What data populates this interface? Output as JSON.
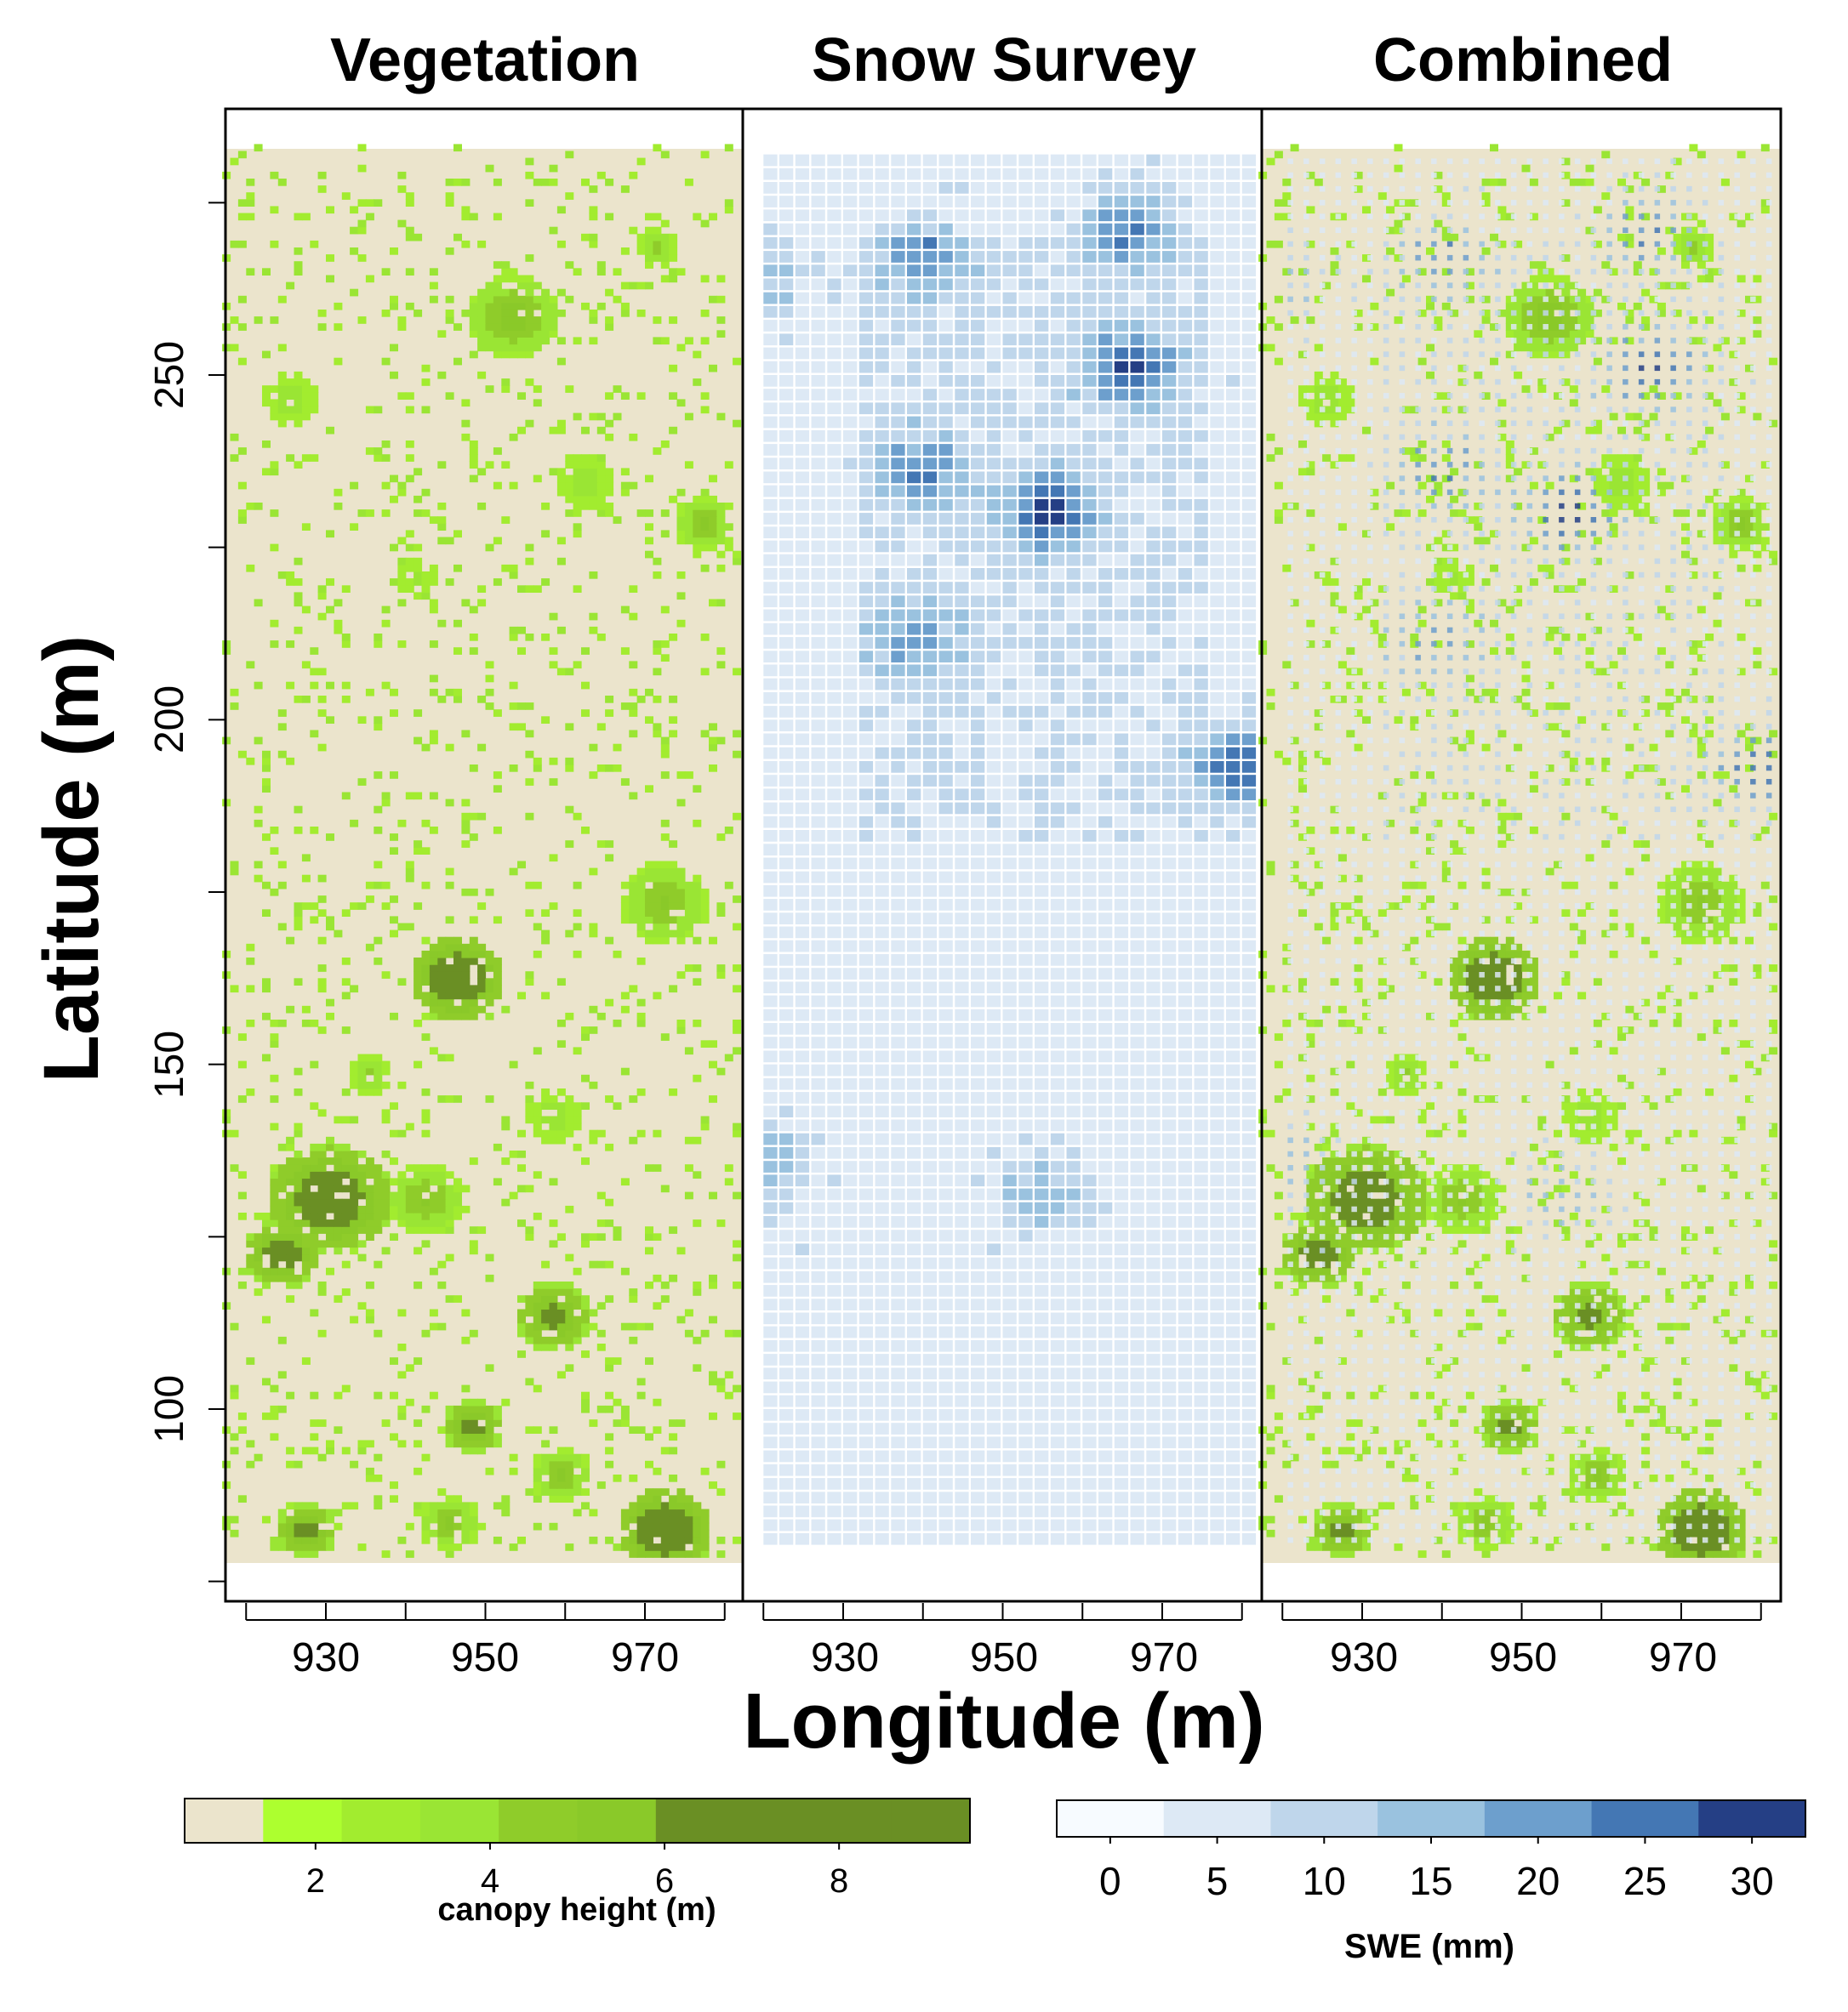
{
  "chart_data": [
    {
      "type": "heatmap",
      "title": "Vegetation",
      "xlabel": "Longitude (m)",
      "ylabel": "Latitude (m)",
      "xlim": [
        917,
        982
      ],
      "ylim": [
        73,
        288
      ],
      "x_ticks": [
        930,
        950,
        970
      ],
      "y_ticks": [
        100,
        150,
        200,
        250
      ],
      "value": "canopy height (m)",
      "background_color": "#ebe4cc",
      "clusters": [
        {
          "x": 953,
          "y": 258,
          "radius_m": 6,
          "height_m": 5.5
        },
        {
          "x": 971,
          "y": 268,
          "radius_m": 3,
          "height_m": 4.0
        },
        {
          "x": 925,
          "y": 246,
          "radius_m": 4,
          "height_m": 3.5
        },
        {
          "x": 962,
          "y": 234,
          "radius_m": 4,
          "height_m": 3.5
        },
        {
          "x": 977,
          "y": 228,
          "radius_m": 4,
          "height_m": 5.0
        },
        {
          "x": 941,
          "y": 220,
          "radius_m": 3,
          "height_m": 3.0
        },
        {
          "x": 946,
          "y": 162,
          "radius_m": 6,
          "height_m": 8.5
        },
        {
          "x": 972,
          "y": 173,
          "radius_m": 6,
          "height_m": 5.0
        },
        {
          "x": 930,
          "y": 130,
          "radius_m": 8,
          "height_m": 8.0
        },
        {
          "x": 924,
          "y": 122,
          "radius_m": 5,
          "height_m": 7.5
        },
        {
          "x": 942,
          "y": 130,
          "radius_m": 5,
          "height_m": 5.0
        },
        {
          "x": 958,
          "y": 113,
          "radius_m": 5,
          "height_m": 7.0
        },
        {
          "x": 948,
          "y": 97,
          "radius_m": 4,
          "height_m": 7.0
        },
        {
          "x": 927,
          "y": 82,
          "radius_m": 4,
          "height_m": 7.0
        },
        {
          "x": 972,
          "y": 82,
          "radius_m": 6,
          "height_m": 8.5
        },
        {
          "x": 945,
          "y": 83,
          "radius_m": 4,
          "height_m": 5.0
        },
        {
          "x": 959,
          "y": 90,
          "radius_m": 4,
          "height_m": 5.0
        },
        {
          "x": 935,
          "y": 148,
          "radius_m": 3,
          "height_m": 4.0
        },
        {
          "x": 958,
          "y": 142,
          "radius_m": 4,
          "height_m": 3.5
        }
      ]
    },
    {
      "type": "heatmap",
      "title": "Snow Survey",
      "xlabel": "Longitude (m)",
      "xlim": [
        917,
        982
      ],
      "x_ticks": [
        930,
        950,
        970
      ],
      "value": "SWE (mm)",
      "grid_spacing_m": 2,
      "baseline_swe_mm": 5,
      "swe_hotspots": [
        {
          "x": 939,
          "y": 266,
          "swe_mm": 20
        },
        {
          "x": 965,
          "y": 270,
          "swe_mm": 22
        },
        {
          "x": 965,
          "y": 250,
          "swe_mm": 25
        },
        {
          "x": 955,
          "y": 229,
          "swe_mm": 27
        },
        {
          "x": 939,
          "y": 235,
          "swe_mm": 20
        },
        {
          "x": 938,
          "y": 210,
          "swe_mm": 17
        },
        {
          "x": 979,
          "y": 192,
          "swe_mm": 27
        },
        {
          "x": 919,
          "y": 263,
          "swe_mm": 15
        },
        {
          "x": 954,
          "y": 130,
          "swe_mm": 16
        },
        {
          "x": 919,
          "y": 135,
          "swe_mm": 17
        }
      ]
    },
    {
      "type": "heatmap",
      "title": "Combined",
      "xlabel": "Longitude (m)",
      "xlim": [
        917,
        982
      ],
      "x_ticks": [
        930,
        950,
        970
      ],
      "value": "canopy height (m) overlaid with SWE (mm)"
    }
  ],
  "axes": {
    "ylabel": "Latitude (m)",
    "xlabel": "Longitude (m)",
    "y_tick_labels": [
      "100",
      "150",
      "200",
      "250"
    ],
    "x_tick_labels": [
      "930",
      "950",
      "970"
    ]
  },
  "colorbars": {
    "canopy": {
      "label": "canopy height (m)",
      "ticks": [
        "2",
        "4",
        "6",
        "8"
      ],
      "tick_values": [
        2,
        4,
        6,
        8
      ],
      "range": [
        0.5,
        9.5
      ],
      "colors": [
        "#ebe4cc",
        "#adff2f",
        "#a2ec2f",
        "#9ae534",
        "#8fcc2a",
        "#8ac929",
        "#6a8f24",
        "#6a8f24",
        "#6a8f24",
        "#6a8f24"
      ]
    },
    "swe": {
      "label": "SWE (mm)",
      "ticks": [
        "0",
        "5",
        "10",
        "15",
        "20",
        "25",
        "30"
      ],
      "tick_values": [
        0,
        5,
        10,
        15,
        20,
        25,
        30
      ],
      "range": [
        -2.5,
        32.5
      ],
      "colors": [
        "#f7fbff",
        "#dde9f5",
        "#bfd6eb",
        "#9ac2df",
        "#6d9fcd",
        "#4477b4",
        "#253f85"
      ]
    }
  }
}
